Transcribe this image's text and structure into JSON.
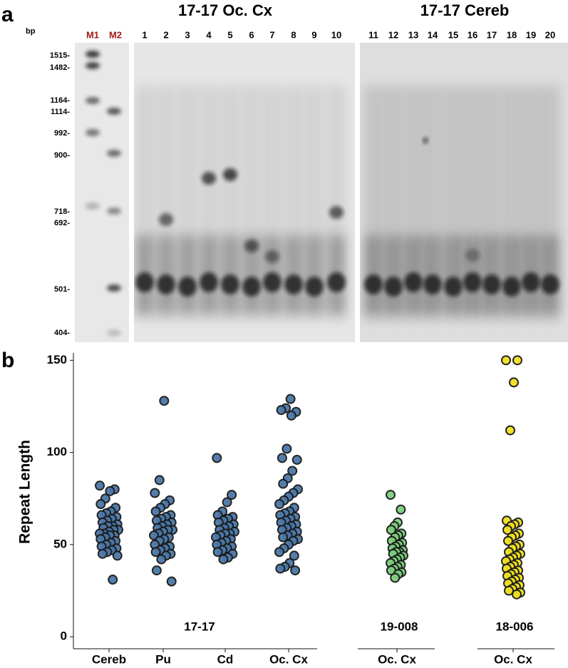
{
  "panel_a": {
    "label": "a",
    "bp_label": "bp",
    "titles": [
      "17-17 Oc. Cx",
      "17-17 Cereb"
    ],
    "lanes": [
      "M1",
      "M2",
      "1",
      "2",
      "3",
      "4",
      "5",
      "6",
      "7",
      "8",
      "9",
      "10",
      "11",
      "12",
      "13",
      "14",
      "15",
      "16",
      "17",
      "18",
      "19",
      "20"
    ],
    "marker_sizes": [
      "1515-",
      "1482-",
      "1164-",
      "1114-",
      "992-",
      "900-",
      "718-",
      "692-",
      "501-",
      "404-"
    ]
  },
  "chart_data": {
    "type": "strip",
    "panel_label": "b",
    "ylabel": "Repeat Length",
    "ylim": [
      -6.5,
      154
    ],
    "yticks": [
      0,
      50,
      100,
      150
    ],
    "groups": [
      {
        "label": "17-17",
        "color": "#4a78a8",
        "categories": [
          "Cereb",
          "Pu",
          "Cd",
          "Oc. Cx"
        ],
        "values": [
          [
            82,
            80,
            79,
            75,
            72,
            70,
            68,
            67,
            66,
            65,
            64,
            63,
            62,
            61,
            60,
            60,
            59,
            58,
            58,
            57,
            56,
            56,
            55,
            55,
            54,
            53,
            52,
            51,
            50,
            49,
            48,
            47,
            46,
            45,
            44,
            31
          ],
          [
            128,
            85,
            78,
            74,
            72,
            70,
            68,
            66,
            65,
            64,
            63,
            62,
            61,
            60,
            59,
            58,
            58,
            57,
            56,
            55,
            54,
            53,
            52,
            50,
            49,
            48,
            47,
            46,
            45,
            44,
            42,
            36,
            30
          ],
          [
            97,
            77,
            73,
            68,
            66,
            65,
            64,
            63,
            62,
            61,
            60,
            59,
            58,
            57,
            56,
            56,
            55,
            54,
            53,
            52,
            51,
            50,
            49,
            48,
            47,
            46,
            45,
            43,
            42
          ],
          [
            129,
            124,
            123,
            122,
            120,
            102,
            97,
            96,
            90,
            86,
            83,
            80,
            78,
            76,
            74,
            72,
            70,
            68,
            67,
            66,
            65,
            64,
            63,
            62,
            61,
            60,
            59,
            58,
            57,
            56,
            55,
            54,
            53,
            52,
            50,
            48,
            46,
            44,
            40,
            38,
            37,
            36
          ]
        ]
      },
      {
        "label": "19-008",
        "color": "#7ccf7c",
        "categories": [
          "Oc. Cx"
        ],
        "values": [
          [
            77,
            69,
            62,
            60,
            58,
            56,
            55,
            54,
            52,
            51,
            50,
            49,
            48,
            47,
            46,
            46,
            45,
            44,
            43,
            42,
            41,
            40,
            39,
            38,
            37,
            36,
            35,
            34,
            32
          ]
        ]
      },
      {
        "label": "18-006",
        "color": "#f0e020",
        "categories": [
          "Oc. Cx"
        ],
        "values": [
          [
            150,
            150,
            138,
            112,
            63,
            62,
            61,
            60,
            58,
            56,
            55,
            54,
            52,
            50,
            49,
            48,
            46,
            45,
            44,
            43,
            42,
            41,
            40,
            39,
            38,
            37,
            36,
            35,
            34,
            33,
            32,
            31,
            30,
            29,
            28,
            27,
            26,
            25,
            24,
            23
          ]
        ]
      }
    ]
  }
}
